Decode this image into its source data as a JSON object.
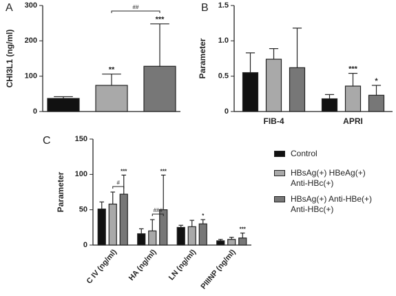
{
  "chart_data": [
    {
      "type": "bar",
      "label": "A",
      "ylabel": "CHI3L1 (ng/ml)",
      "categories": [
        null
      ],
      "series": [
        {
          "color": "#111111",
          "values": [
            37
          ],
          "errors": [
            5
          ],
          "annotations": [
            null
          ]
        },
        {
          "color": "#a9a9a9",
          "values": [
            74
          ],
          "errors": [
            32
          ],
          "annotations": [
            "**"
          ]
        },
        {
          "color": "#777777",
          "values": [
            128
          ],
          "errors": [
            120
          ],
          "annotations": [
            "***"
          ]
        }
      ],
      "bracket_labels": [
        "##"
      ],
      "ylim": [
        0,
        300
      ],
      "yticks": [
        0,
        100,
        200,
        300
      ]
    },
    {
      "type": "bar",
      "label": "B",
      "ylabel": "Parameter",
      "categories": [
        "FIB-4",
        "APRI"
      ],
      "series": [
        {
          "color": "#111111",
          "values": [
            0.55,
            0.18
          ],
          "errors": [
            0.28,
            0.06
          ],
          "annotations": [
            null,
            null
          ]
        },
        {
          "color": "#a9a9a9",
          "values": [
            0.74,
            0.36
          ],
          "errors": [
            0.15,
            0.18
          ],
          "annotations": [
            null,
            "***"
          ]
        },
        {
          "color": "#777777",
          "values": [
            0.62,
            0.23
          ],
          "errors": [
            0.56,
            0.14
          ],
          "annotations": [
            null,
            "*"
          ]
        }
      ],
      "ylim": [
        0,
        1.5
      ],
      "yticks": [
        0,
        0.5,
        {
          "value": 1,
          "label": "1.0"
        },
        1.5
      ]
    },
    {
      "type": "bar",
      "label": "C",
      "ylabel": "Parameter",
      "categories": [
        "C IV (ng/ml)",
        "HA (ng/ml)",
        "LN (ng/ml)",
        "PIIINP (ng/ml)"
      ],
      "series": [
        {
          "name": "Control",
          "color": "#111111",
          "values": [
            51,
            16,
            25,
            6
          ],
          "errors": [
            10,
            7,
            3,
            2
          ],
          "annotations": [
            null,
            null,
            null,
            null
          ]
        },
        {
          "name": "HBsAg(+) HBeAg(+) Anti-HBc(+)",
          "color": "#a9a9a9",
          "values": [
            58,
            20,
            26,
            8
          ],
          "errors": [
            17,
            16,
            9,
            3
          ],
          "annotations": [
            null,
            null,
            null,
            null
          ]
        },
        {
          "name": "HBsAg(+) Anti-HBe(+) Anti-HBc(+)",
          "color": "#777777",
          "values": [
            72,
            50,
            30,
            10
          ],
          "errors": [
            27,
            49,
            6,
            7
          ],
          "annotations": [
            "***",
            "***",
            "*",
            "***"
          ]
        }
      ],
      "bracket_labels": [
        "#",
        "###",
        null,
        null
      ],
      "ylim": [
        0,
        150
      ],
      "yticks": [
        0,
        50,
        100,
        150
      ]
    }
  ]
}
